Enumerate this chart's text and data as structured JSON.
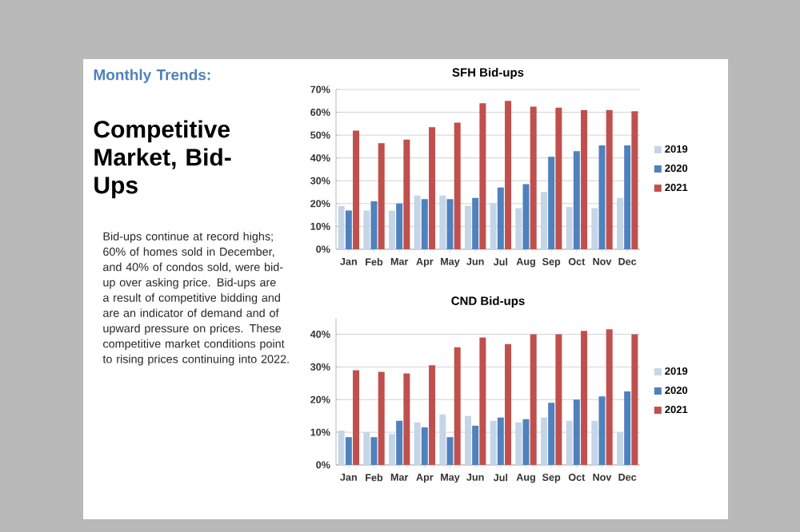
{
  "chart_data": [
    {
      "type": "other",
      "title": "Monthly Trends:",
      "subtitle": "Competitive Market, Bid-Ups",
      "annotations": [
        "Bid-ups continue at record highs; 60% of homes sold in December, and 40% of condos sold, were bid-up over asking price.  Bid-ups are a result of competitive bidding and are an indicator of demand and of upward pressure on prices. These competitive market conditions point to rising prices continuing into 2022."
      ]
    },
    {
      "type": "bar",
      "title": "SFH Bid-ups",
      "categories": [
        "Jan",
        "Feb",
        "Mar",
        "Apr",
        "May",
        "Jun",
        "Jul",
        "Aug",
        "Sep",
        "Oct",
        "Nov",
        "Dec"
      ],
      "series": [
        {
          "name": "2019",
          "color": "#c5d5e8",
          "values": [
            19,
            17,
            17,
            23.5,
            23.5,
            19,
            20,
            18,
            25,
            18.5,
            18,
            22.5
          ]
        },
        {
          "name": "2020",
          "color": "#4f81bd",
          "values": [
            17,
            21,
            20,
            22,
            22,
            22.5,
            27,
            28.5,
            40.5,
            43,
            45.5,
            45.5
          ]
        },
        {
          "name": "2021",
          "color": "#c0504d",
          "values": [
            52,
            46.5,
            48,
            53.5,
            55.5,
            64,
            65,
            62.5,
            62,
            61,
            61,
            60.5
          ]
        }
      ],
      "ylim": [
        0,
        70
      ],
      "yticks": [
        {
          "value": 0,
          "label": "0%"
        },
        {
          "value": 10,
          "label": "10%"
        },
        {
          "value": 20,
          "label": "20%"
        },
        {
          "value": 30,
          "label": "30%"
        },
        {
          "value": 40,
          "label": "40%"
        },
        {
          "value": 50,
          "label": "50%"
        },
        {
          "value": 60,
          "label": "60%"
        },
        {
          "value": 70,
          "label": "70%"
        }
      ],
      "grid": "y",
      "legend": "right"
    },
    {
      "type": "bar",
      "title": "CND Bid-ups",
      "categories": [
        "Jan",
        "Feb",
        "Mar",
        "Apr",
        "May",
        "Jun",
        "Jul",
        "Aug",
        "Sep",
        "Oct",
        "Nov",
        "Dec"
      ],
      "series": [
        {
          "name": "2019",
          "color": "#c5d5e8",
          "values": [
            10.5,
            10,
            9.5,
            13,
            15.5,
            15,
            13.5,
            13,
            14.5,
            13.5,
            13.5,
            10
          ]
        },
        {
          "name": "2020",
          "color": "#4f81bd",
          "values": [
            8.5,
            8.5,
            13.5,
            11.5,
            8.5,
            12,
            14.5,
            14,
            19,
            20,
            21,
            22.5
          ]
        },
        {
          "name": "2021",
          "color": "#c0504d",
          "values": [
            29,
            28.5,
            28,
            30.5,
            36,
            39,
            37,
            40,
            40,
            41,
            41.5,
            40
          ]
        }
      ],
      "ylim": [
        0,
        45
      ],
      "yticks": [
        {
          "value": 0,
          "label": "0%"
        },
        {
          "value": 10,
          "label": "10%"
        },
        {
          "value": 20,
          "label": "20%"
        },
        {
          "value": 30,
          "label": "30%"
        },
        {
          "value": 40,
          "label": "40%"
        }
      ],
      "grid": "y",
      "legend": "right"
    }
  ]
}
